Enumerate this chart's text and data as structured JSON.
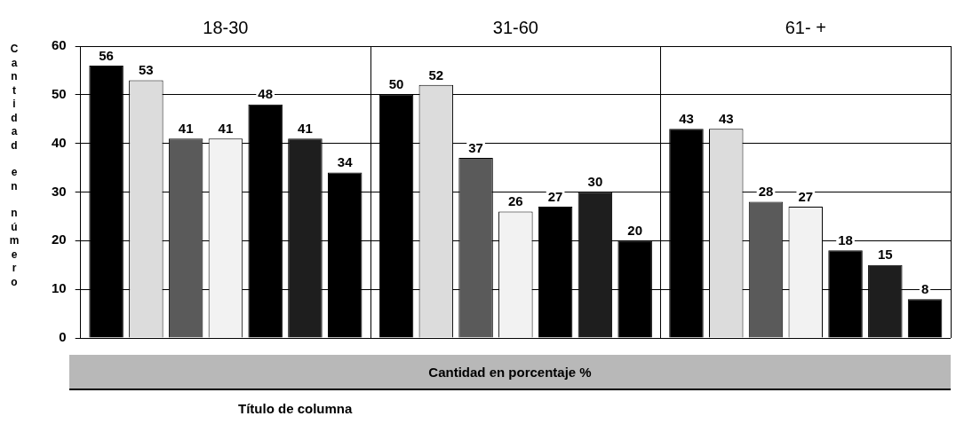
{
  "chart_data": {
    "type": "bar",
    "ylabel": "Cantidad en número",
    "xlabel": "Título de columna",
    "annotations": [
      "Cantidad en porcentaje %"
    ],
    "categories": [
      "18-30",
      "31-60",
      "61- +"
    ],
    "series": [
      {
        "color": "#000000",
        "values": [
          56,
          50,
          43
        ]
      },
      {
        "color": "#dcdcdc",
        "values": [
          53,
          52,
          43
        ]
      },
      {
        "color": "#5a5a5a",
        "values": [
          41,
          37,
          28
        ]
      },
      {
        "color": "#f2f2f2",
        "values": [
          41,
          26,
          27
        ]
      },
      {
        "color": "#000000",
        "values": [
          48,
          27,
          18
        ]
      },
      {
        "color": "#1e1e1e",
        "values": [
          41,
          30,
          15
        ]
      },
      {
        "color": "#000000",
        "values": [
          34,
          20,
          8
        ]
      }
    ],
    "ylim": [
      0,
      60
    ],
    "yticks": [
      0,
      10,
      20,
      30,
      40,
      50,
      60
    ],
    "grid": true,
    "data_labels": true
  }
}
